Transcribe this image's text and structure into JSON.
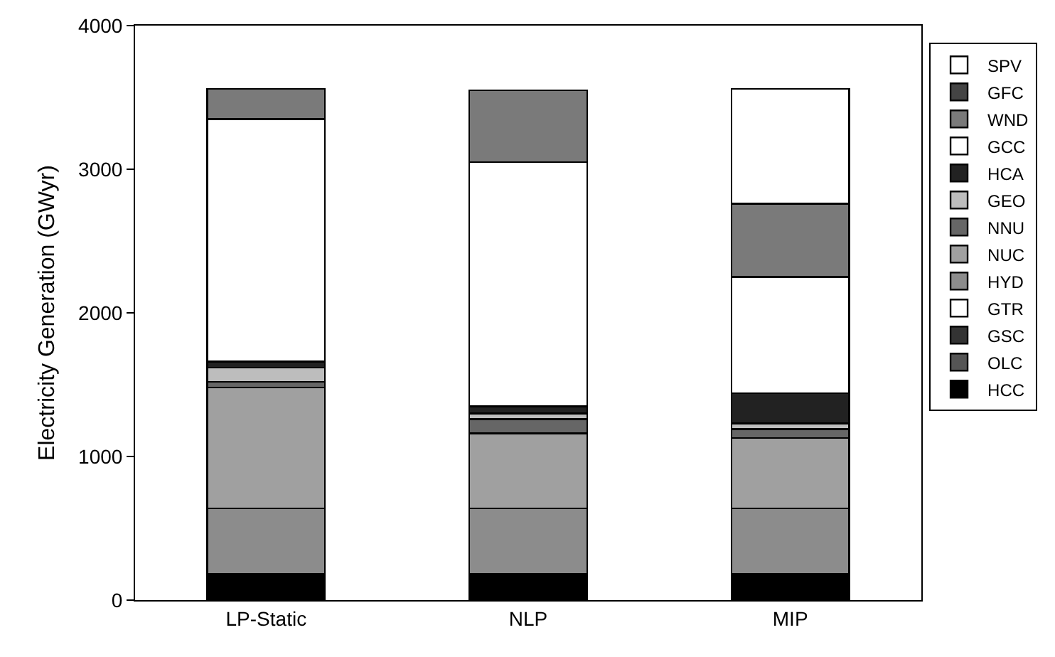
{
  "chart_data": {
    "type": "bar",
    "stacked": true,
    "ylabel": "Electricity Generation (GWyr)",
    "categories": [
      "LP-Static",
      "NLP",
      "MIP"
    ],
    "ylim": [
      0,
      4000
    ],
    "yticks": [
      0,
      1000,
      2000,
      3000,
      4000
    ],
    "grid": false,
    "legend": "right",
    "series": [
      {
        "name": "HCC",
        "color": "#000000",
        "values": [
          180,
          180,
          180
        ]
      },
      {
        "name": "OLC",
        "color": "#555555",
        "values": [
          0,
          0,
          0
        ]
      },
      {
        "name": "GSC",
        "color": "#333333",
        "values": [
          0,
          0,
          0
        ]
      },
      {
        "name": "GTR",
        "color": "#ffffff",
        "values": [
          0,
          0,
          0
        ]
      },
      {
        "name": "HYD",
        "color": "#8c8c8c",
        "values": [
          460,
          460,
          460
        ]
      },
      {
        "name": "NUC",
        "color": "#a0a0a0",
        "values": [
          840,
          520,
          490
        ]
      },
      {
        "name": "NNU",
        "color": "#666666",
        "values": [
          40,
          100,
          60
        ]
      },
      {
        "name": "GEO",
        "color": "#bdbdbd",
        "values": [
          100,
          40,
          40
        ]
      },
      {
        "name": "HCA",
        "color": "#222222",
        "values": [
          40,
          50,
          210
        ]
      },
      {
        "name": "GCC",
        "color": "#ffffff",
        "values": [
          1690,
          1700,
          810
        ]
      },
      {
        "name": "WND",
        "color": "#7a7a7a",
        "values": [
          210,
          500,
          510
        ]
      },
      {
        "name": "GFC",
        "color": "#444444",
        "values": [
          0,
          0,
          0
        ]
      },
      {
        "name": "SPV",
        "color": "#ffffff",
        "values": [
          0,
          0,
          800
        ]
      }
    ]
  }
}
